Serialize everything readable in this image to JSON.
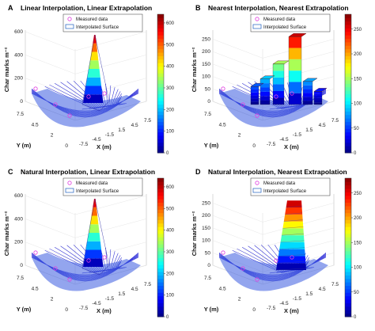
{
  "chart_data": [
    {
      "panel_label": "A",
      "title": "Linear Interpolation, Linear Extrapolation",
      "type": "surface",
      "xlabel": "X (m)",
      "ylabel": "Y (m)",
      "zlabel": "Char marks m⁻²",
      "x_ticks": [
        "-7.5",
        "-4.5",
        "-1.5",
        "1.5",
        "4.5",
        "7.5"
      ],
      "y_ticks": [
        "0",
        "2",
        "4.5",
        "7.5"
      ],
      "z_ticks": [
        "0",
        "200",
        "400",
        "600"
      ],
      "zlim": [
        0,
        600
      ],
      "colorbar_ticks": [
        "0",
        "100",
        "200",
        "300",
        "400",
        "500",
        "600"
      ],
      "colorbar_range": [
        0,
        640
      ],
      "legend": [
        "Measured data",
        "Interpolated Surface"
      ],
      "peak_value": 600,
      "style": "spike"
    },
    {
      "panel_label": "B",
      "title": "Nearest Interpolation, Nearest Extrapolation",
      "type": "surface",
      "xlabel": "X (m)",
      "ylabel": "Y (m)",
      "zlabel": "Char marks m⁻²",
      "x_ticks": [
        "-7.5",
        "-4.5",
        "-1.5",
        "1.5",
        "4.5",
        "7.5"
      ],
      "y_ticks": [
        "0",
        "2",
        "4.5",
        "7.5"
      ],
      "z_ticks": [
        "0",
        "50",
        "100",
        "150",
        "200",
        "250"
      ],
      "zlim": [
        0,
        280
      ],
      "colorbar_ticks": [
        "0",
        "50",
        "100",
        "150",
        "200",
        "250"
      ],
      "colorbar_range": [
        0,
        280
      ],
      "legend": [
        "Measured data",
        "Interpolated Surface"
      ],
      "peak_value": 260,
      "style": "blocks"
    },
    {
      "panel_label": "C",
      "title": "Natural Interpolation, Linear Extrapolation",
      "type": "surface",
      "xlabel": "X (m)",
      "ylabel": "Y (m)",
      "zlabel": "Char marks m⁻²",
      "x_ticks": [
        "-7.5",
        "-4.5",
        "-1.5",
        "1.5",
        "4.5",
        "7.5"
      ],
      "y_ticks": [
        "0",
        "2",
        "4.5",
        "7.5"
      ],
      "z_ticks": [
        "0",
        "200",
        "400",
        "600"
      ],
      "zlim": [
        0,
        600
      ],
      "colorbar_ticks": [
        "0",
        "100",
        "200",
        "300",
        "400",
        "500",
        "600"
      ],
      "colorbar_range": [
        0,
        640
      ],
      "legend": [
        "Measured data",
        "Interpolated Surface"
      ],
      "peak_value": 600,
      "style": "spike"
    },
    {
      "panel_label": "D",
      "title": "Natural Interpolation, Nearest Extrapolation",
      "type": "surface",
      "xlabel": "X (m)",
      "ylabel": "Y (m)",
      "zlabel": "Char marks m⁻²",
      "x_ticks": [
        "-7.5",
        "-4.5",
        "-1.5",
        "1.5",
        "4.5",
        "7.5"
      ],
      "y_ticks": [
        "0",
        "2",
        "4.5",
        "7.5"
      ],
      "z_ticks": [
        "0",
        "50",
        "100",
        "150",
        "200",
        "250"
      ],
      "zlim": [
        0,
        280
      ],
      "colorbar_ticks": [
        "0",
        "50",
        "100",
        "150",
        "200",
        "250"
      ],
      "colorbar_range": [
        0,
        280
      ],
      "legend": [
        "Measured data",
        "Interpolated Surface"
      ],
      "peak_value": 260,
      "style": "ridge"
    }
  ],
  "colors": {
    "measured_marker": "#e040e0",
    "surface_edge": "#2020c0",
    "legend_surface_edge": "#2060c0"
  }
}
